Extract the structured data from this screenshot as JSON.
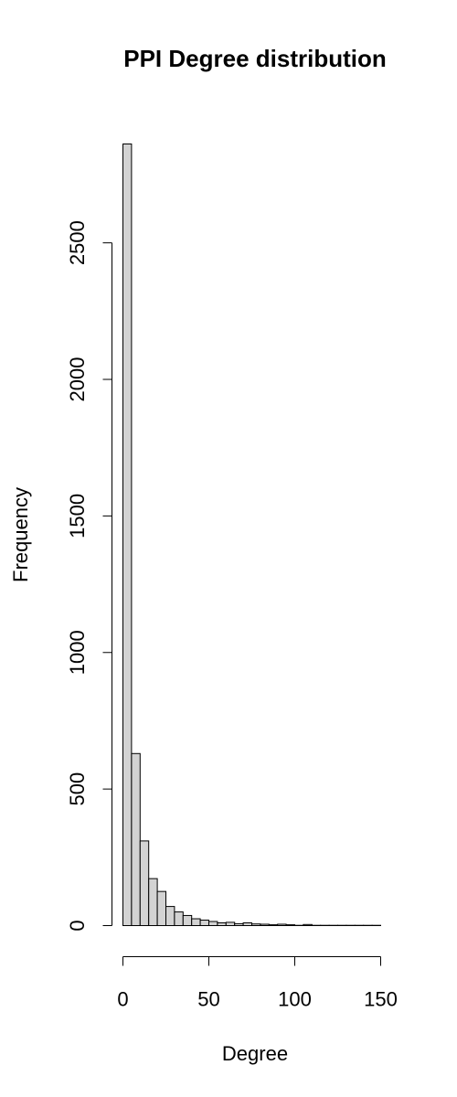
{
  "chart_data": {
    "type": "bar",
    "title": "PPI Degree distribution",
    "xlabel": "Degree",
    "ylabel": "Frequency",
    "bin_width": 5,
    "bin_start": 0,
    "values": [
      2862,
      630,
      310,
      172,
      125,
      70,
      50,
      37,
      25,
      20,
      15,
      10,
      12,
      7,
      10,
      6,
      5,
      3,
      5,
      3,
      1,
      4,
      1,
      1,
      1,
      1,
      1,
      1,
      1,
      1,
      0
    ],
    "xlim": [
      0,
      150
    ],
    "ylim": [
      0,
      2862
    ],
    "x_ticks": [
      0,
      50,
      100,
      150
    ],
    "x_tick_labels": [
      "0",
      "50",
      "100",
      "150"
    ],
    "y_ticks": [
      0,
      500,
      1000,
      1500,
      2000,
      2500
    ],
    "y_tick_labels": [
      "0",
      "500",
      "1000",
      "1500",
      "2000",
      "2500"
    ],
    "bar_color": "#d3d3d3",
    "grid": false
  }
}
